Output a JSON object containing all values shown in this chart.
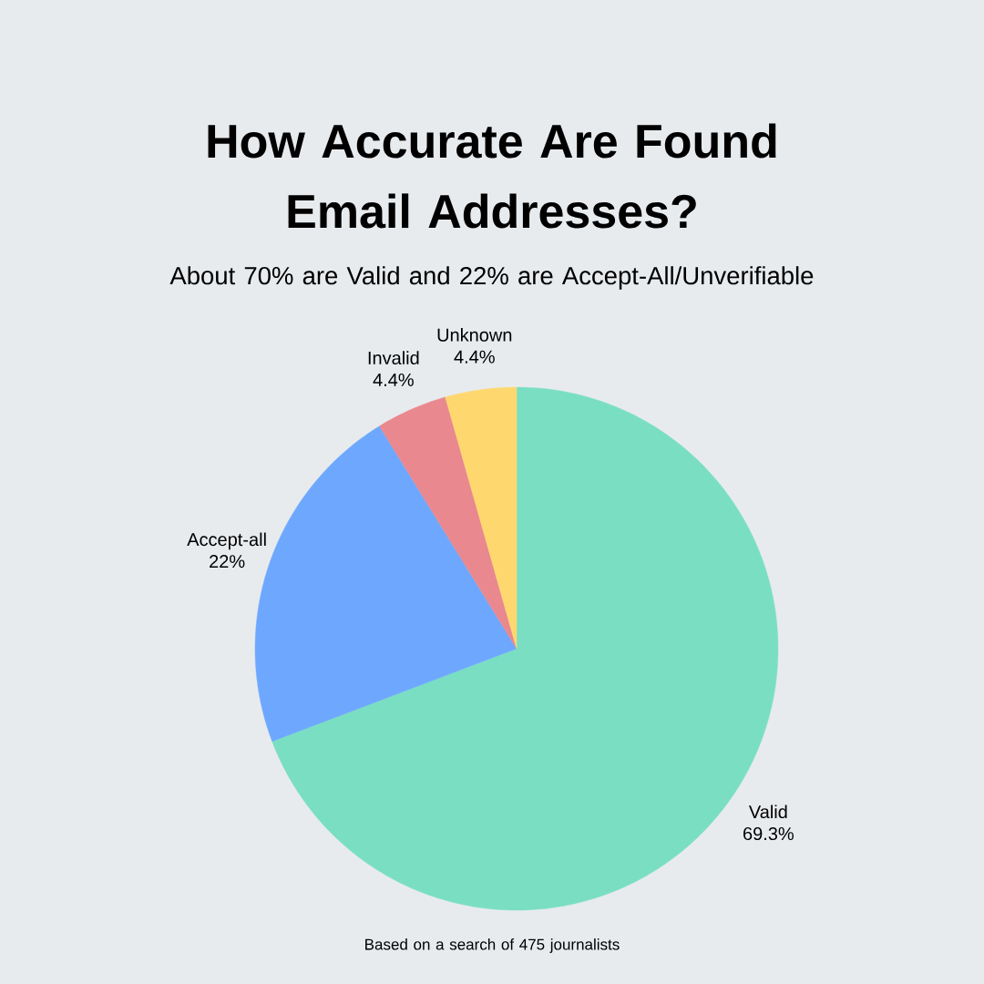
{
  "chart_data": {
    "type": "pie",
    "title": "How Accurate Are Found Email Addresses?",
    "subtitle": "About 70% are Valid and 22% are Accept-All/Unverifiable",
    "categories": [
      "Valid",
      "Accept-all",
      "Invalid",
      "Unknown"
    ],
    "values": [
      69.3,
      22,
      4.4,
      4.4
    ],
    "value_labels": [
      "69.3%",
      "22%",
      "4.4%",
      "4.4%"
    ],
    "colors": [
      "#7adfc2",
      "#6ea8fe",
      "#e9888f",
      "#fed86f"
    ],
    "annotations": [
      "Based on a search of 475 journalists"
    ]
  }
}
